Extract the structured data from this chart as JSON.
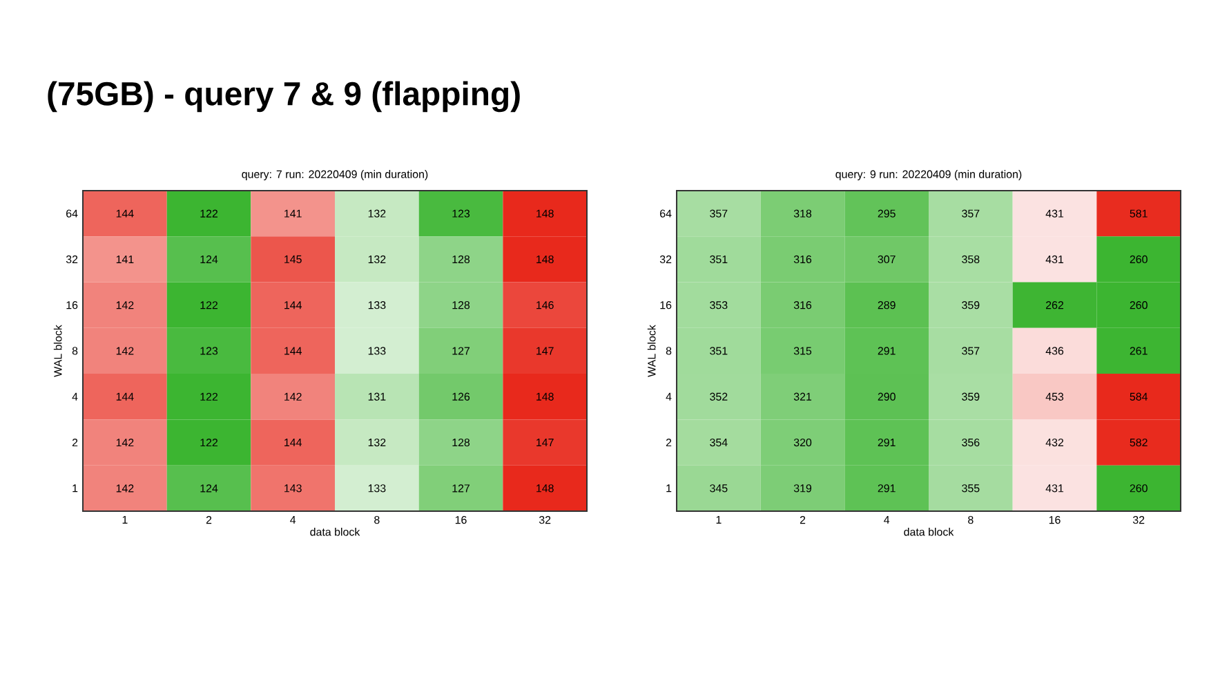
{
  "chart_data": [
    {
      "type": "other",
      "title": "(75GB) - query 7 & 9 (flapping)"
    },
    {
      "type": "heatmap",
      "data_labels": true,
      "title": "query: 7  run: 20220409  (min duration)",
      "xlabel": "data block",
      "ylabel": "WAL block",
      "categories": [
        "1",
        "2",
        "4",
        "8",
        "16",
        "32"
      ],
      "y_categories": [
        "64",
        "32",
        "16",
        "8",
        "4",
        "2",
        "1"
      ],
      "cells": [
        [
          144,
          122,
          141,
          132,
          123,
          148
        ],
        [
          141,
          124,
          145,
          132,
          128,
          148
        ],
        [
          142,
          122,
          144,
          133,
          128,
          146
        ],
        [
          142,
          123,
          144,
          133,
          127,
          147
        ],
        [
          144,
          122,
          142,
          131,
          126,
          148
        ],
        [
          142,
          122,
          144,
          132,
          128,
          147
        ],
        [
          142,
          124,
          143,
          133,
          127,
          148
        ]
      ]
    },
    {
      "type": "heatmap",
      "data_labels": true,
      "title": "query: 9  run: 20220409  (min duration)",
      "xlabel": "data block",
      "ylabel": "WAL block",
      "categories": [
        "1",
        "2",
        "4",
        "8",
        "16",
        "32"
      ],
      "y_categories": [
        "64",
        "32",
        "16",
        "8",
        "4",
        "2",
        "1"
      ],
      "cells": [
        [
          357,
          318,
          295,
          357,
          431,
          581
        ],
        [
          351,
          316,
          307,
          358,
          431,
          260
        ],
        [
          353,
          316,
          289,
          359,
          262,
          260
        ],
        [
          351,
          315,
          291,
          357,
          436,
          261
        ],
        [
          352,
          321,
          290,
          359,
          453,
          584
        ],
        [
          354,
          320,
          291,
          356,
          432,
          582
        ],
        [
          345,
          319,
          291,
          355,
          431,
          260
        ]
      ]
    }
  ]
}
